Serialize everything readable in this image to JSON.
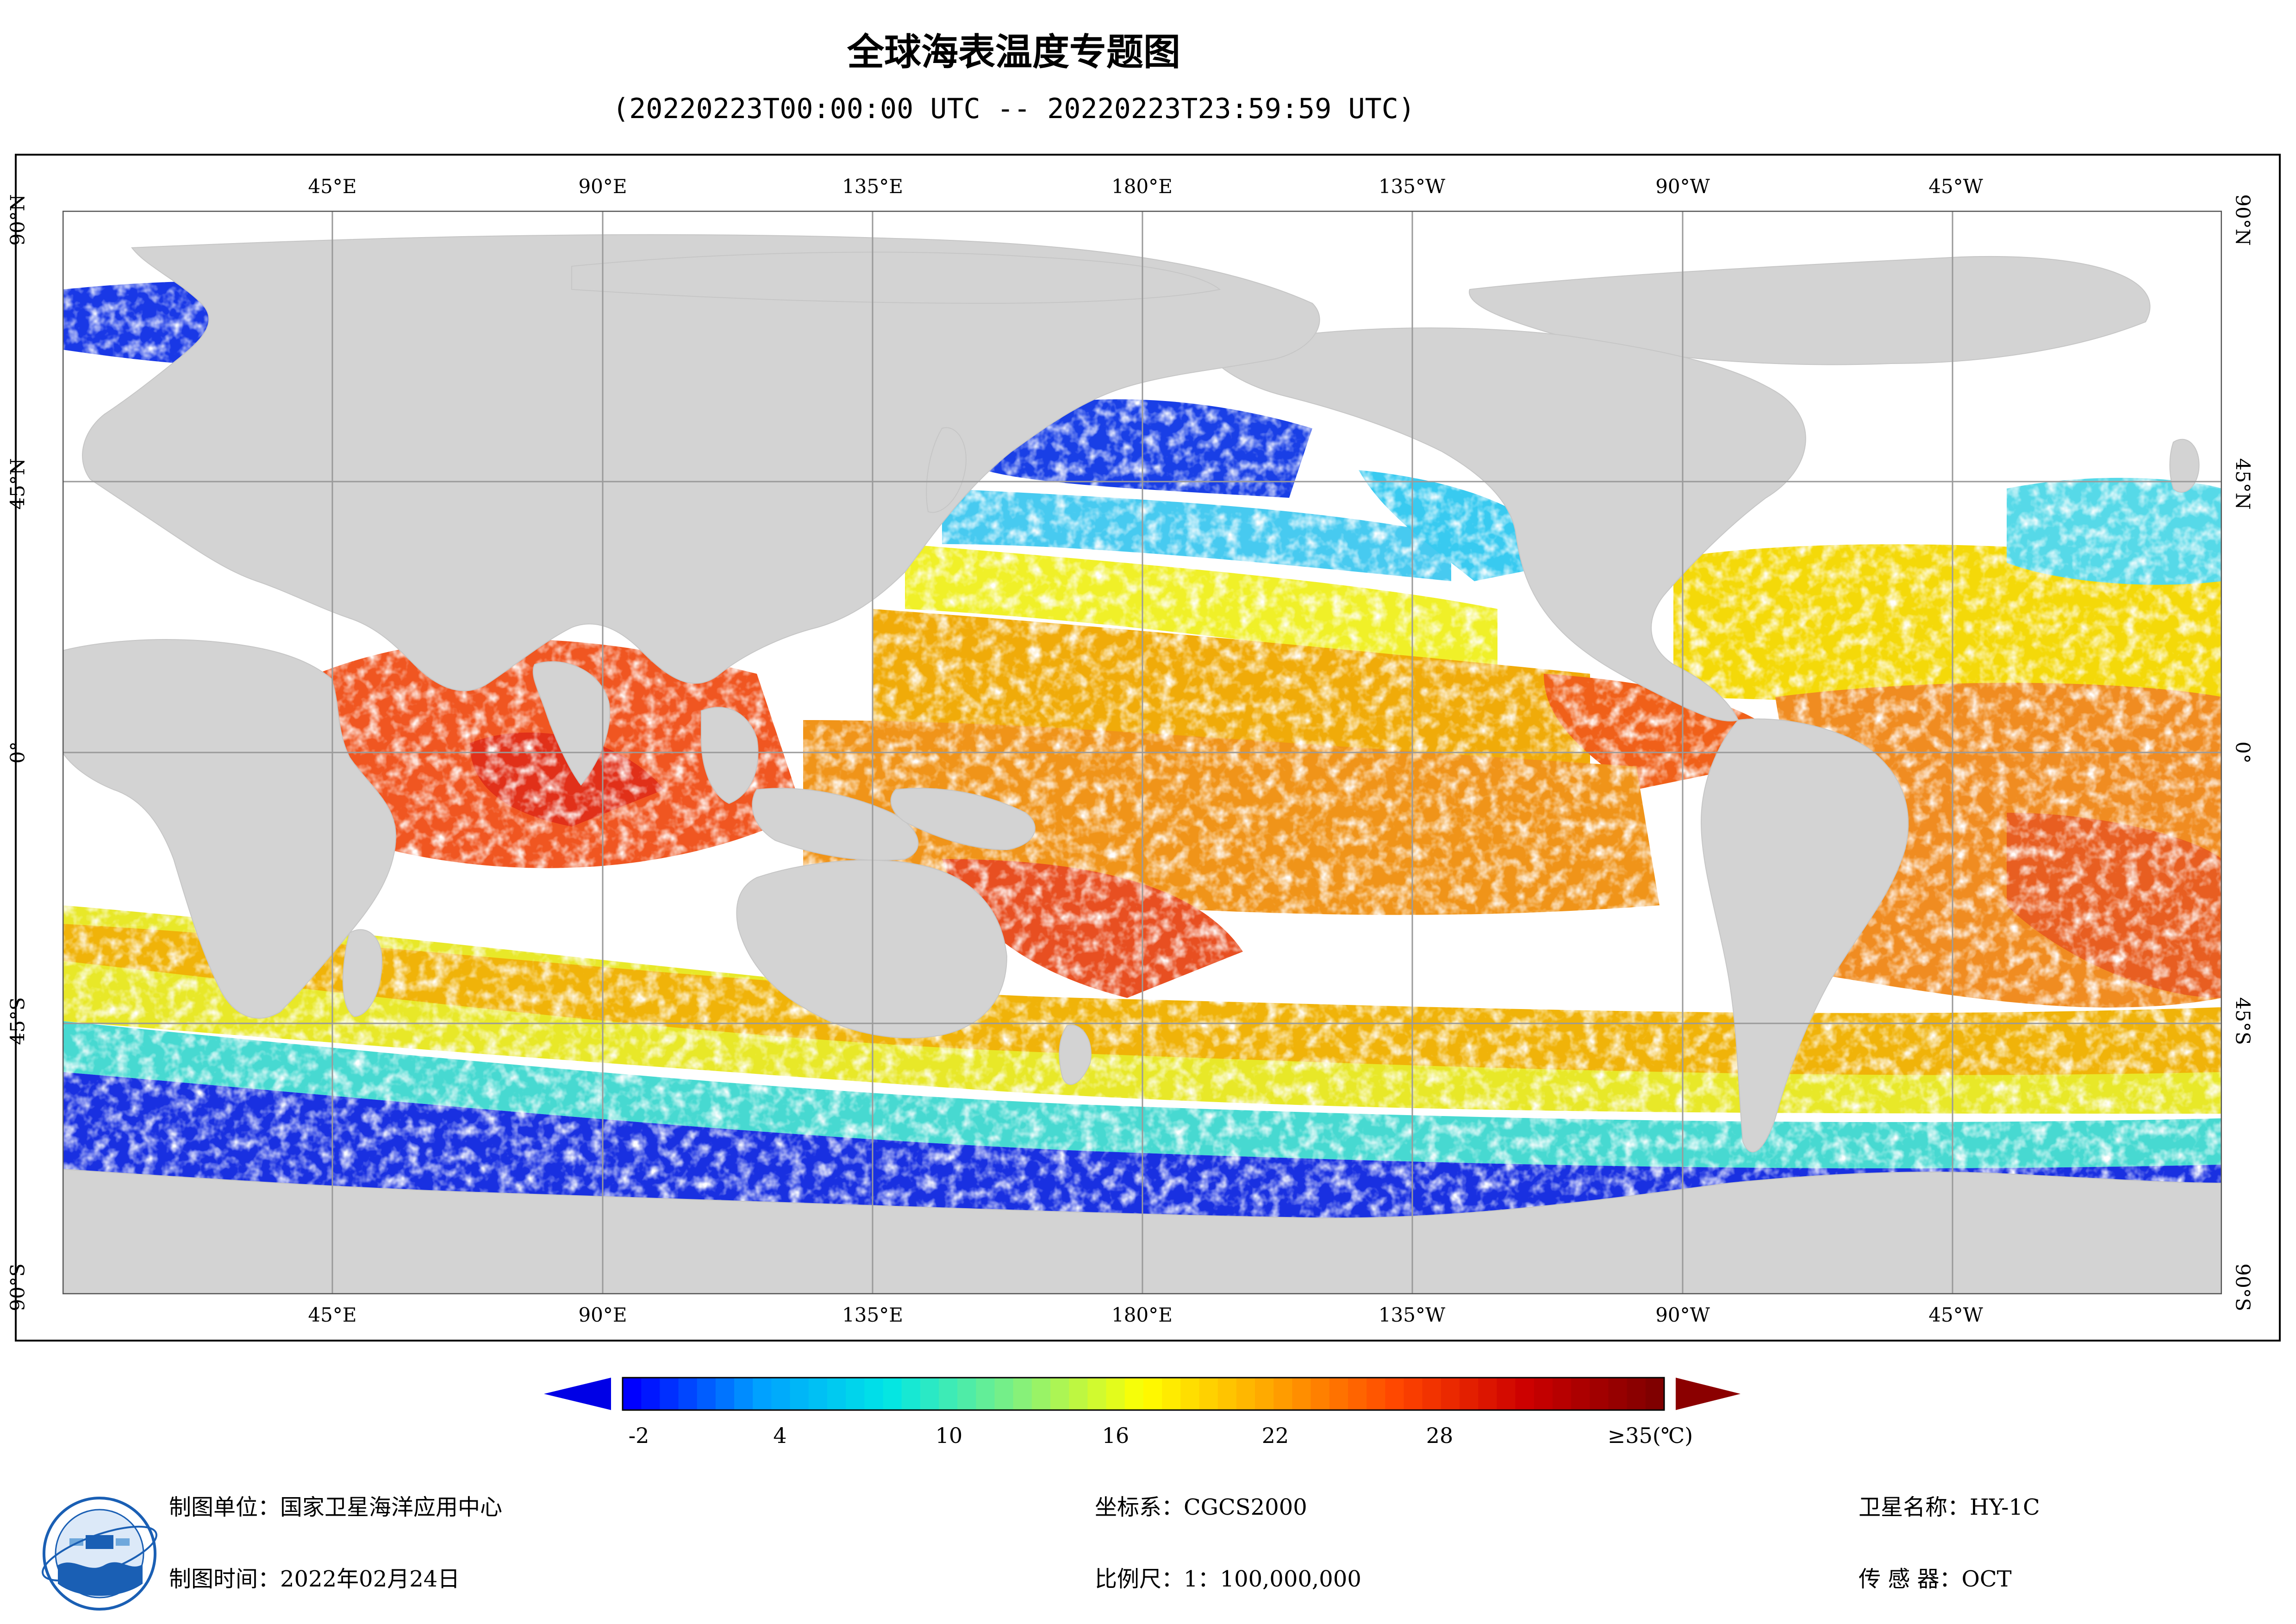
{
  "title": "全球海表温度专题图",
  "subtitle": "(20220223T00:00:00 UTC -- 20220223T23:59:59 UTC)",
  "map": {
    "top_lon_labels": [
      "45°E",
      "90°E",
      "135°E",
      "180°E",
      "135°W",
      "90°W",
      "45°W"
    ],
    "bottom_lon_labels": [
      "45°E",
      "90°E",
      "135°E",
      "180°E",
      "135°W",
      "90°W",
      "45°W"
    ],
    "left_lat_labels": [
      "90°N",
      "45°N",
      "0°",
      "45°S",
      "90°S"
    ],
    "right_lat_labels": [
      "90°N",
      "45°N",
      "0°",
      "45°S",
      "90°S"
    ],
    "colors": {
      "land": "#d3d3d3",
      "no_data": "#ffffff",
      "grid": "#9a9a9a"
    }
  },
  "colorbar": {
    "ticks": [
      "-2",
      "4",
      "10",
      "16",
      "22",
      "28",
      "≥35(℃)"
    ],
    "colors": [
      "#0000ff",
      "#00a0ff",
      "#00e6e6",
      "#80f080",
      "#ffff00",
      "#ffa500",
      "#ff4500",
      "#cc0000",
      "#800000"
    ],
    "under_color": "#0000e6",
    "over_color": "#8b0000"
  },
  "info": {
    "unit_label": "制图单位：国家卫星海洋应用中心",
    "time_label": "制图时间：2022年02月24日",
    "crs_label": "坐标系：CGCS2000",
    "scale_label": "比例尺：1：100,000,000",
    "satellite_label": "卫星名称：HY-1C",
    "sensor_label": "传 感 器：OCT"
  }
}
